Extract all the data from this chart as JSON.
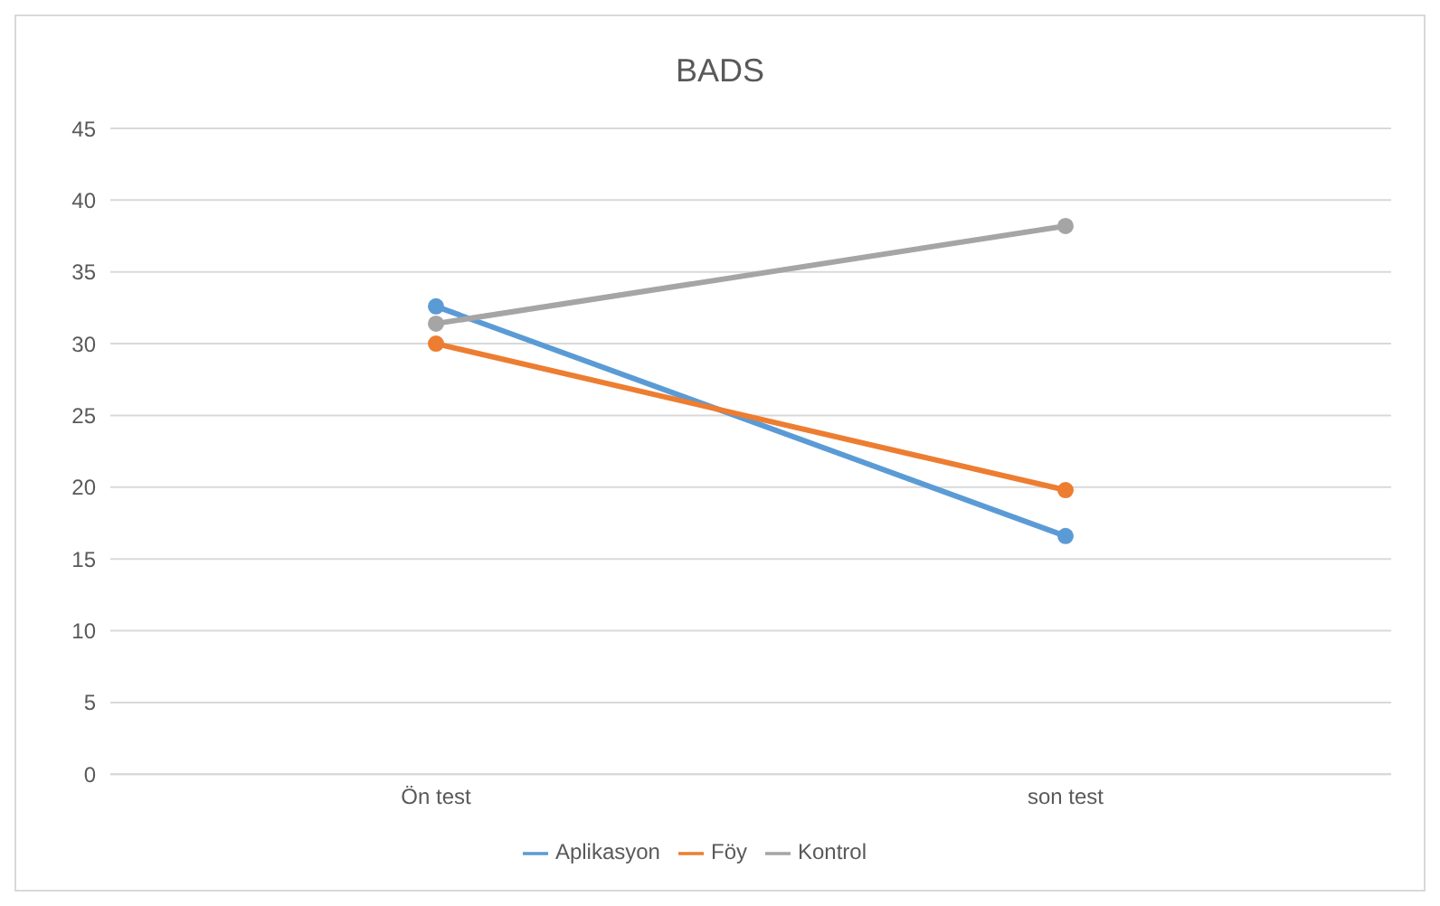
{
  "chart_data": {
    "type": "line",
    "title": "BADS",
    "categories": [
      "Ön test",
      "son test"
    ],
    "series": [
      {
        "name": "Aplikasyon",
        "color": "#5b9bd5",
        "values": [
          32.6,
          16.6
        ]
      },
      {
        "name": "Föy",
        "color": "#ed7d31",
        "values": [
          30,
          19.8
        ]
      },
      {
        "name": "Kontrol",
        "color": "#a5a5a5",
        "values": [
          31.4,
          38.2
        ]
      }
    ],
    "ylim": [
      0,
      45
    ],
    "yticks": [
      0,
      5,
      10,
      15,
      20,
      25,
      30,
      35,
      40,
      45
    ],
    "grid": "y",
    "legend": "bottom",
    "marker": "circle"
  }
}
